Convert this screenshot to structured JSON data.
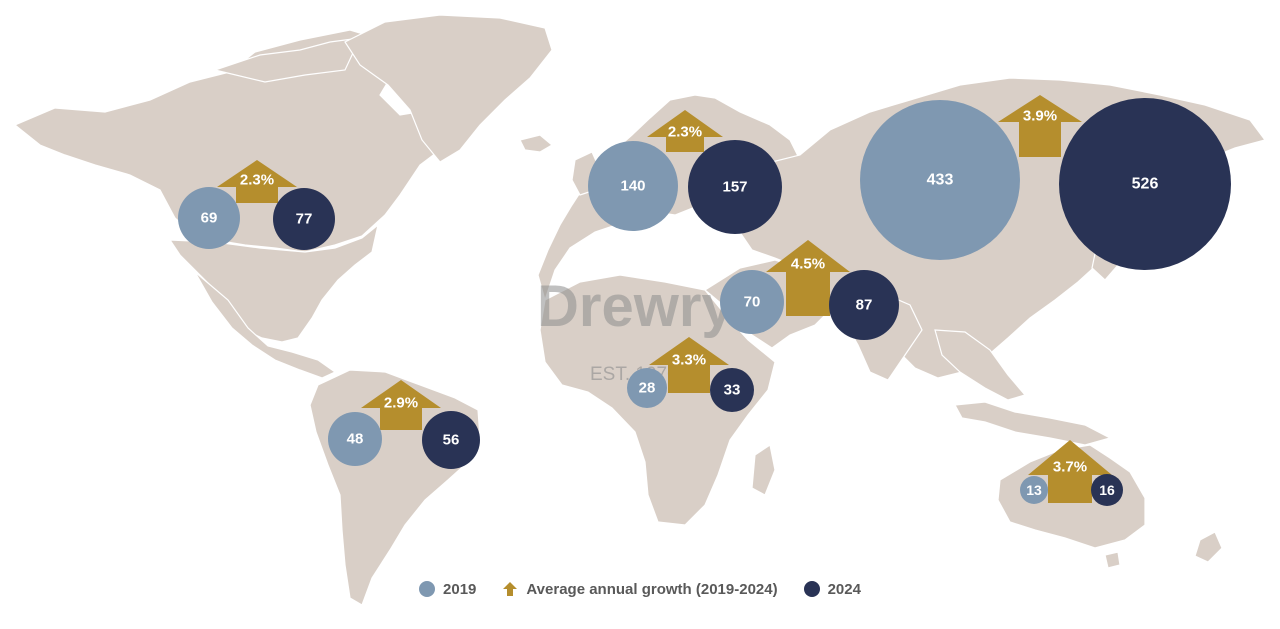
{
  "colors": {
    "land": "#d9cfc7",
    "year_2019": "#7f98b1",
    "year_2024": "#293355",
    "growth_arrow": "#b58e2d",
    "watermark": "#8e8e8e"
  },
  "watermark": {
    "brand": "Drewry",
    "established": "EST. 1970"
  },
  "legend": {
    "item_2019": "2019",
    "item_growth": "Average annual growth (2019-2024)",
    "item_2024": "2024"
  },
  "regions": [
    {
      "id": "north-america",
      "value_2019": 69,
      "value_2024": 77,
      "growth": "2.3%"
    },
    {
      "id": "south-america",
      "value_2019": 48,
      "value_2024": 56,
      "growth": "2.9%"
    },
    {
      "id": "europe",
      "value_2019": 140,
      "value_2024": 157,
      "growth": "2.3%"
    },
    {
      "id": "africa",
      "value_2019": 28,
      "value_2024": 33,
      "growth": "3.3%"
    },
    {
      "id": "middle-east",
      "value_2019": 70,
      "value_2024": 87,
      "growth": "4.5%"
    },
    {
      "id": "asia",
      "value_2019": 433,
      "value_2024": 526,
      "growth": "3.9%"
    },
    {
      "id": "oceania",
      "value_2019": 13,
      "value_2024": 16,
      "growth": "3.7%"
    }
  ]
}
